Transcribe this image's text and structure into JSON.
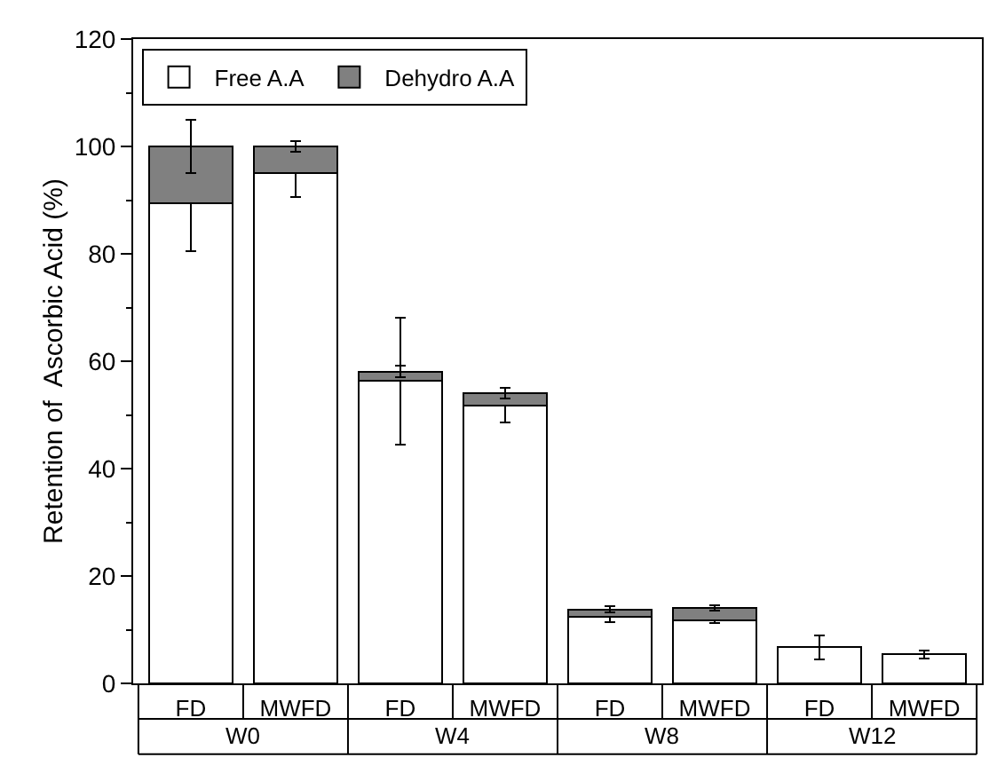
{
  "chart_data": {
    "type": "bar",
    "stacked": true,
    "categories": [
      "FD",
      "MWFD",
      "FD",
      "MWFD",
      "FD",
      "MWFD",
      "FD",
      "MWFD"
    ],
    "ylabel": "Retention of  Ascorbic Acid (%)",
    "annotations": [
      "W0",
      "W4",
      "W8",
      "W12"
    ],
    "series": [
      {
        "name": "Free A.A",
        "color": "#ffffff",
        "values": [
          89.5,
          95,
          56.3,
          51.8,
          12.4,
          11.8,
          6.7,
          5.4
        ],
        "errors": [
          9,
          4.5,
          11.8,
          3.2,
          1,
          0.5,
          2.3,
          0.7
        ]
      },
      {
        "name": "Dehydro A.A",
        "color": "#808080",
        "values": [
          10.5,
          5,
          1.8,
          2.2,
          1.4,
          2.3,
          null,
          null
        ],
        "errors": [
          5,
          1,
          1,
          1,
          0.5,
          0.5,
          null,
          null
        ]
      }
    ],
    "ylim": [
      0,
      120
    ],
    "yticks": [
      0,
      20,
      40,
      60,
      80,
      100,
      120
    ],
    "grid": false,
    "legend": "top left"
  }
}
